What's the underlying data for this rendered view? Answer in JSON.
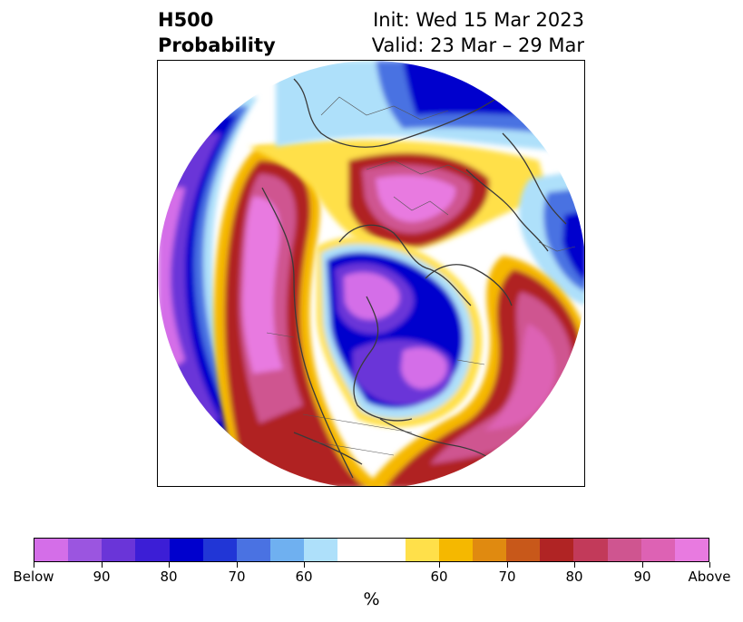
{
  "title": {
    "left_line1": "H500",
    "left_line2": "Probability",
    "right_line1": "Init: Wed 15 Mar 2023",
    "right_line2": "Valid: 23 Mar – 29 Mar"
  },
  "colorbar": {
    "colors": [
      "#d46ee8",
      "#9b55e0",
      "#6a35d8",
      "#3c1ed6",
      "#0000cd",
      "#2136d6",
      "#4a72e2",
      "#6fb0f0",
      "#aee0fa",
      "#ffffff",
      "#ffe04a",
      "#f5b800",
      "#e08a10",
      "#c8581a",
      "#b02424",
      "#c23a5a",
      "#cf5590",
      "#dd62b4",
      "#e87ae0"
    ],
    "tick_labels": [
      "Below",
      "90",
      "80",
      "70",
      "60",
      "60",
      "70",
      "80",
      "90",
      "Above"
    ],
    "unit_label": "%"
  }
}
